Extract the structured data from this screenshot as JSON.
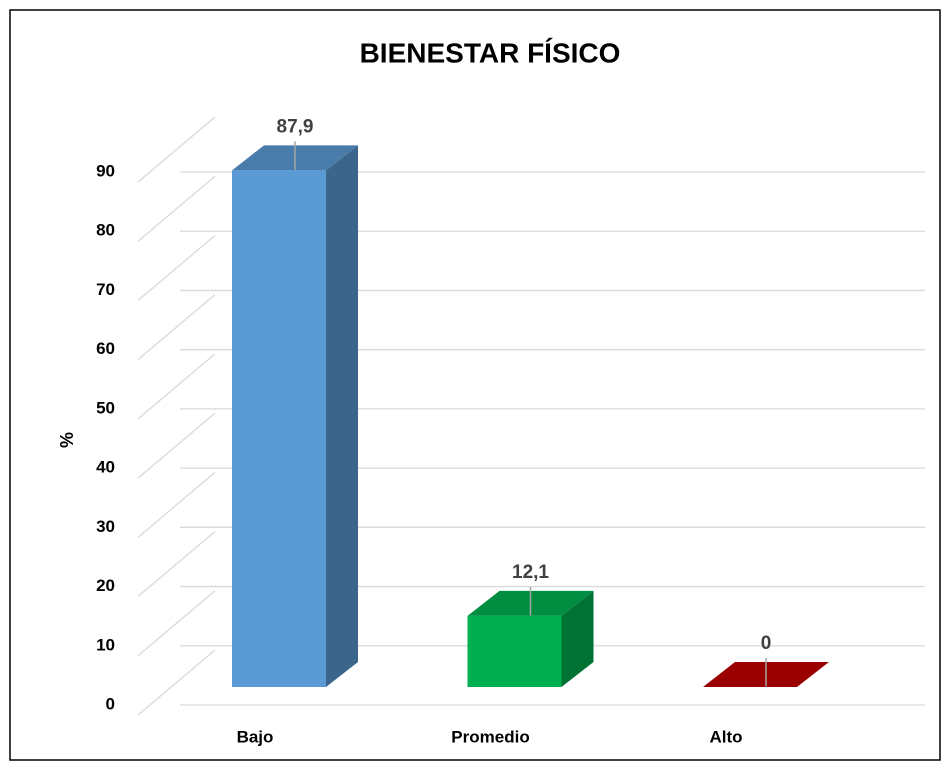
{
  "chart_data": {
    "type": "bar3d",
    "title": "BIENESTAR FÍSICO",
    "y_label": "%",
    "categories": [
      "Bajo",
      "Promedio",
      "Alto"
    ],
    "values": [
      87.9,
      12.1,
      0
    ],
    "value_labels": [
      "87,9",
      "12,1",
      "0"
    ],
    "colors": [
      "#5b9bd5",
      "#00b050",
      "#c00000"
    ],
    "ylim": [
      0,
      90
    ],
    "yticks": [
      0,
      10,
      20,
      30,
      40,
      50,
      60,
      70,
      80,
      90
    ],
    "grid": true
  }
}
